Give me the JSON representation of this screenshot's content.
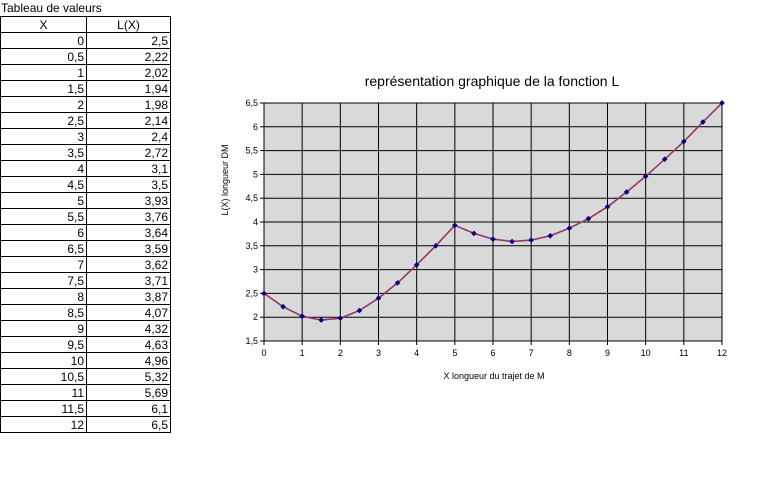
{
  "table": {
    "title": "Tableau de valeurs",
    "headers": [
      "X",
      "L(X)"
    ],
    "rows": [
      [
        "0",
        "2,5"
      ],
      [
        "0,5",
        "2,22"
      ],
      [
        "1",
        "2,02"
      ],
      [
        "1,5",
        "1,94"
      ],
      [
        "2",
        "1,98"
      ],
      [
        "2,5",
        "2,14"
      ],
      [
        "3",
        "2,4"
      ],
      [
        "3,5",
        "2,72"
      ],
      [
        "4",
        "3,1"
      ],
      [
        "4,5",
        "3,5"
      ],
      [
        "5",
        "3,93"
      ],
      [
        "5,5",
        "3,76"
      ],
      [
        "6",
        "3,64"
      ],
      [
        "6,5",
        "3,59"
      ],
      [
        "7",
        "3,62"
      ],
      [
        "7,5",
        "3,71"
      ],
      [
        "8",
        "3,87"
      ],
      [
        "8,5",
        "4,07"
      ],
      [
        "9",
        "4,32"
      ],
      [
        "9,5",
        "4,63"
      ],
      [
        "10",
        "4,96"
      ],
      [
        "10,5",
        "5,32"
      ],
      [
        "11",
        "5,69"
      ],
      [
        "11,5",
        "6,1"
      ],
      [
        "12",
        "6,5"
      ]
    ]
  },
  "chart_data": {
    "type": "line",
    "title": "représentation graphique de la fonction L",
    "xlabel": "X longueur du trajet de M",
    "ylabel": "L(X) longueur DM",
    "xlim": [
      0,
      12
    ],
    "ylim": [
      1.5,
      6.5
    ],
    "xticks": [
      "0",
      "1",
      "2",
      "3",
      "4",
      "5",
      "6",
      "7",
      "8",
      "9",
      "10",
      "11",
      "12"
    ],
    "yticks": [
      "1,5",
      "2",
      "2,5",
      "3",
      "3,5",
      "4",
      "4,5",
      "5",
      "5,5",
      "6",
      "6,5"
    ],
    "grid": true,
    "x": [
      0,
      0.5,
      1,
      1.5,
      2,
      2.5,
      3,
      3.5,
      4,
      4.5,
      5,
      5.5,
      6,
      6.5,
      7,
      7.5,
      8,
      8.5,
      9,
      9.5,
      10,
      10.5,
      11,
      11.5,
      12
    ],
    "y": [
      2.5,
      2.22,
      2.02,
      1.94,
      1.98,
      2.14,
      2.4,
      2.72,
      3.1,
      3.5,
      3.93,
      3.76,
      3.64,
      3.59,
      3.62,
      3.71,
      3.87,
      4.07,
      4.32,
      4.63,
      4.96,
      5.32,
      5.69,
      6.1,
      6.5
    ],
    "colors": {
      "plot_background": "#d9d9d9",
      "line": "#993366",
      "marker": "#000080",
      "grid": "#000000"
    }
  }
}
